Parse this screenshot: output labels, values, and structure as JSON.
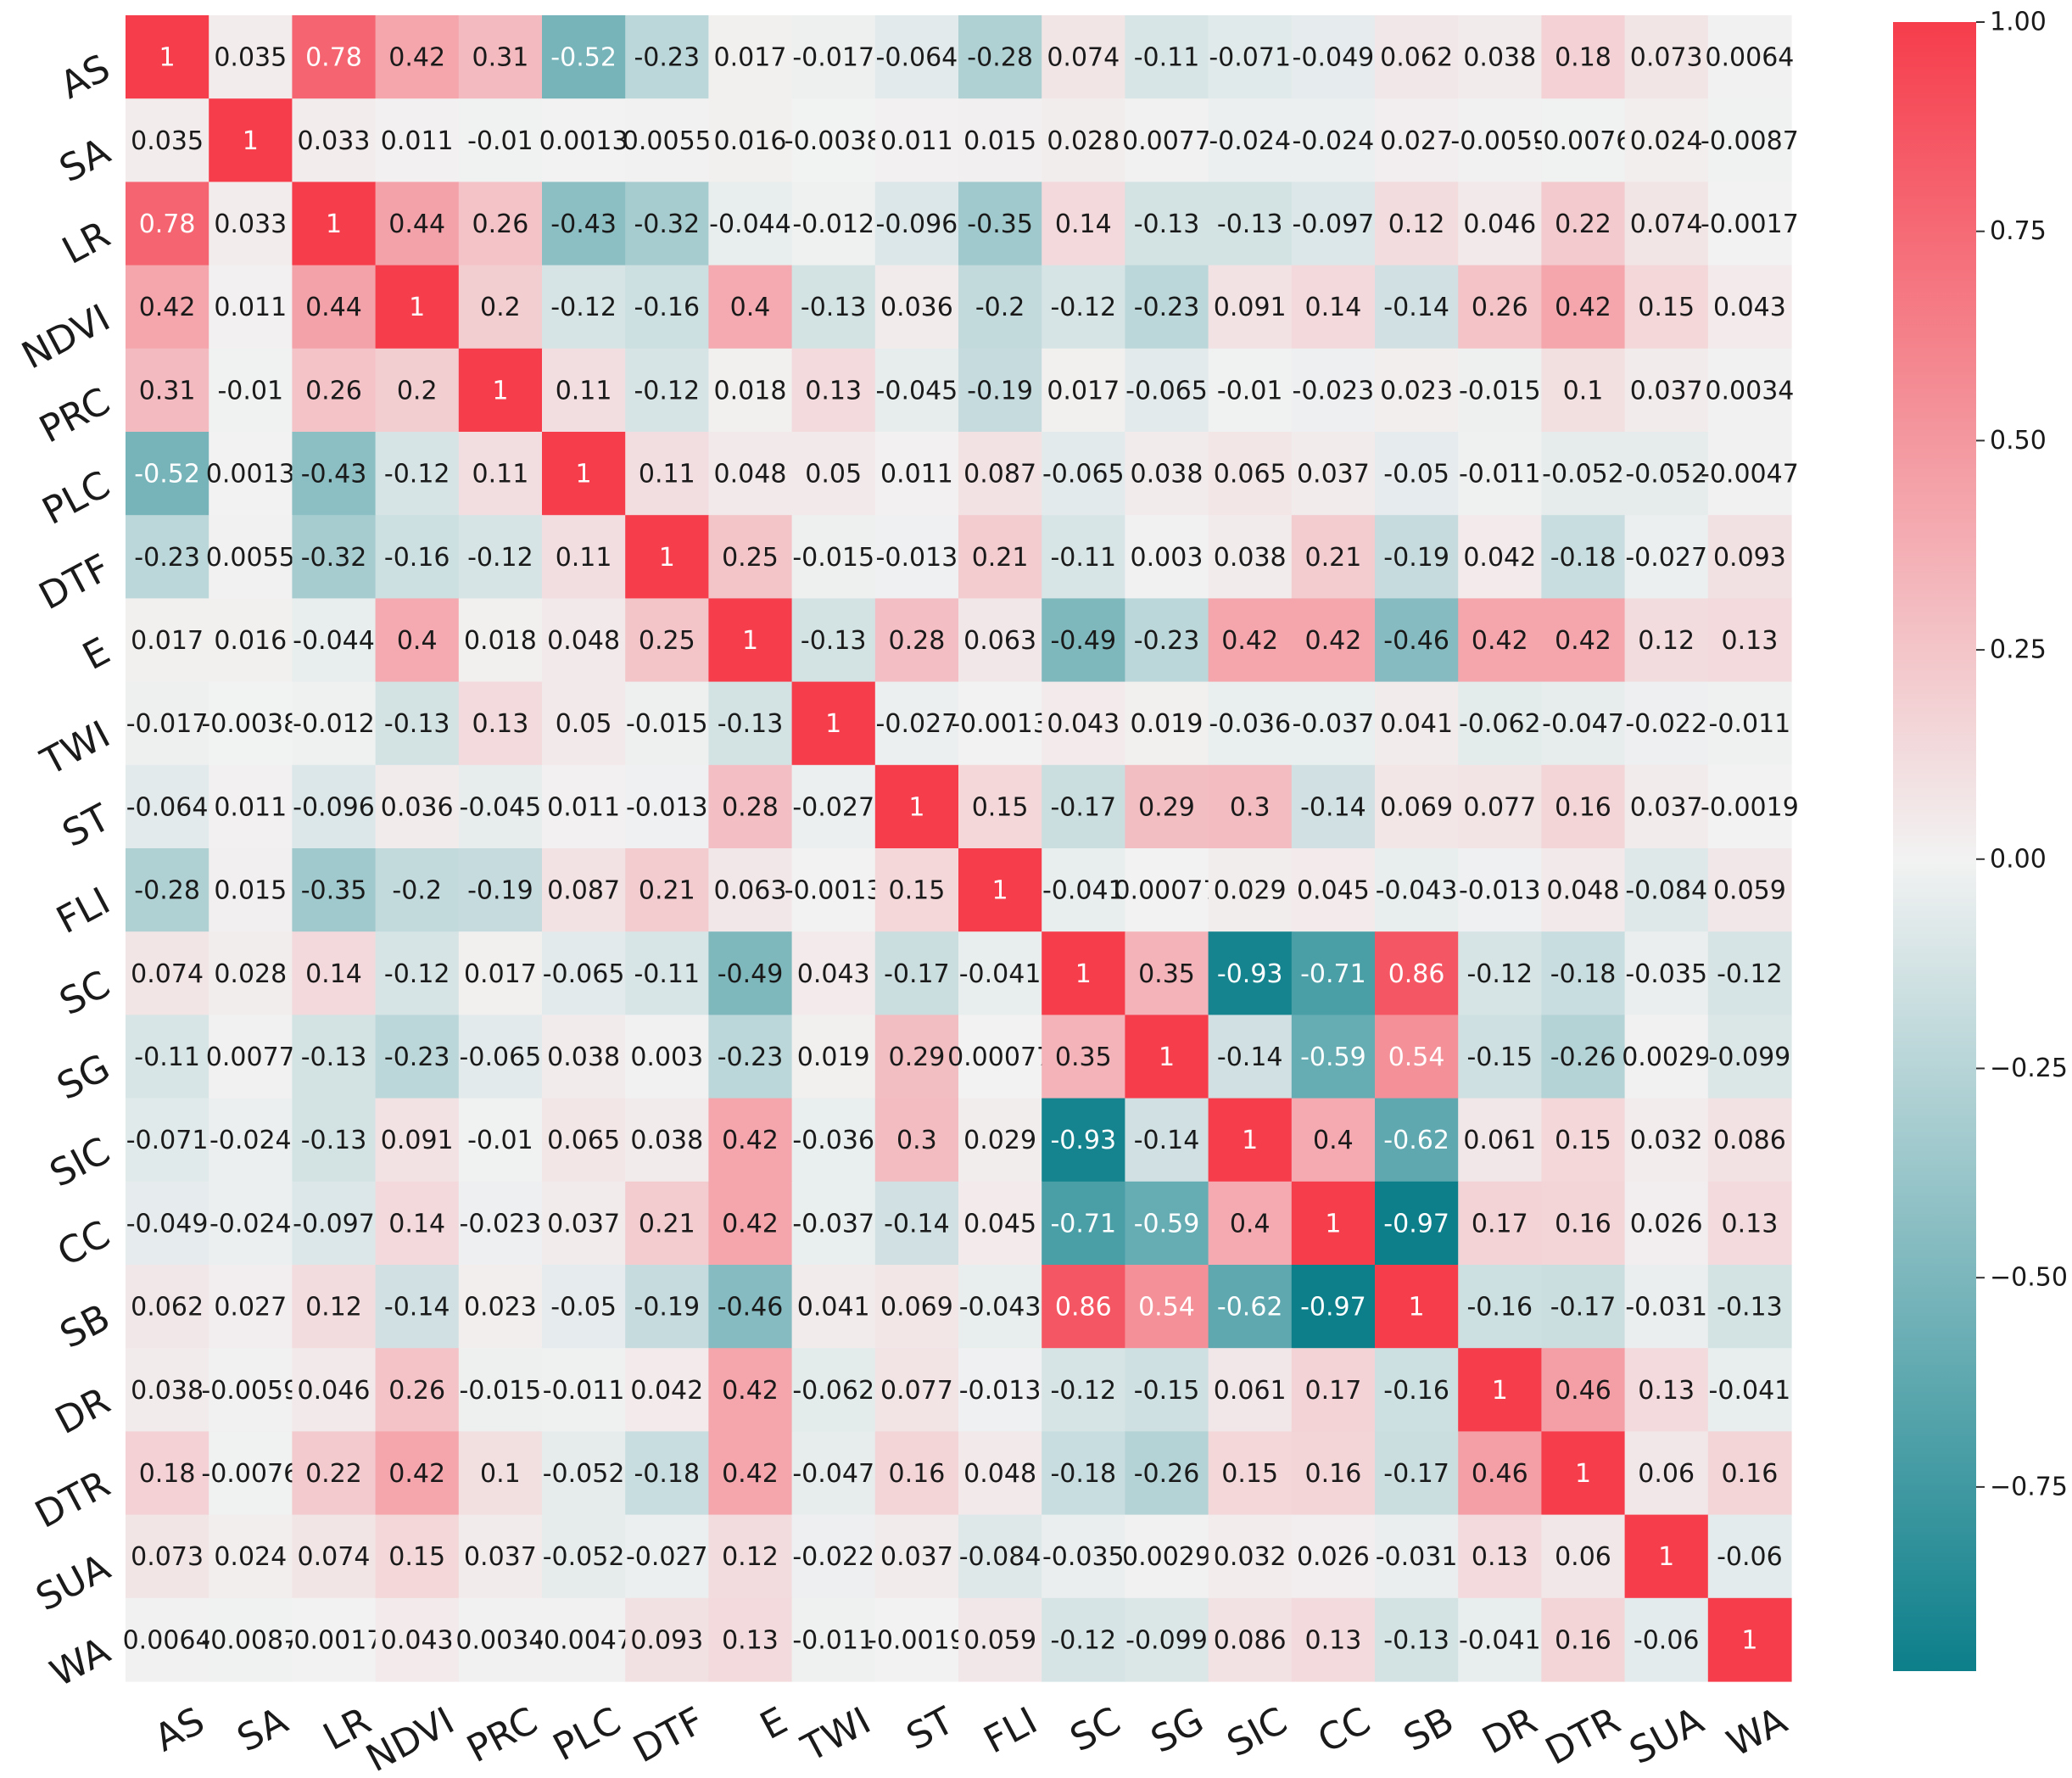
{
  "chart_data": {
    "type": "heatmap",
    "title": "",
    "labels": [
      "AS",
      "SA",
      "LR",
      "NDVI",
      "PRC",
      "PLC",
      "DTF",
      "E",
      "TWI",
      "ST",
      "FLI",
      "SC",
      "SG",
      "SIC",
      "CC",
      "SB",
      "DR",
      "DTR",
      "SUA",
      "WA"
    ],
    "matrix": [
      [
        "1",
        "0.035",
        "0.78",
        "0.42",
        "0.31",
        "-0.52",
        "-0.23",
        "0.017",
        "-0.017",
        "-0.064",
        "-0.28",
        "0.074",
        "-0.11",
        "-0.071",
        "-0.049",
        "0.062",
        "0.038",
        "0.18",
        "0.073",
        "0.0064"
      ],
      [
        "0.035",
        "1",
        "0.033",
        "0.011",
        "-0.01",
        "0.0013",
        "0.0055",
        "0.016",
        "-0.0038",
        "0.011",
        "0.015",
        "0.028",
        "0.0077",
        "-0.024",
        "-0.024",
        "0.027",
        "-0.0059",
        "-0.0076",
        "0.024",
        "-0.0087"
      ],
      [
        "0.78",
        "0.033",
        "1",
        "0.44",
        "0.26",
        "-0.43",
        "-0.32",
        "-0.044",
        "-0.012",
        "-0.096",
        "-0.35",
        "0.14",
        "-0.13",
        "-0.13",
        "-0.097",
        "0.12",
        "0.046",
        "0.22",
        "0.074",
        "-0.0017"
      ],
      [
        "0.42",
        "0.011",
        "0.44",
        "1",
        "0.2",
        "-0.12",
        "-0.16",
        "0.4",
        "-0.13",
        "0.036",
        "-0.2",
        "-0.12",
        "-0.23",
        "0.091",
        "0.14",
        "-0.14",
        "0.26",
        "0.42",
        "0.15",
        "0.043"
      ],
      [
        "0.31",
        "-0.01",
        "0.26",
        "0.2",
        "1",
        "0.11",
        "-0.12",
        "0.018",
        "0.13",
        "-0.045",
        "-0.19",
        "0.017",
        "-0.065",
        "-0.01",
        "-0.023",
        "0.023",
        "-0.015",
        "0.1",
        "0.037",
        "0.0034"
      ],
      [
        "-0.52",
        "0.0013",
        "-0.43",
        "-0.12",
        "0.11",
        "1",
        "0.11",
        "0.048",
        "0.05",
        "0.011",
        "0.087",
        "-0.065",
        "0.038",
        "0.065",
        "0.037",
        "-0.05",
        "-0.011",
        "-0.052",
        "-0.052",
        "-0.0047"
      ],
      [
        "-0.23",
        "0.0055",
        "-0.32",
        "-0.16",
        "-0.12",
        "0.11",
        "1",
        "0.25",
        "-0.015",
        "-0.013",
        "0.21",
        "-0.11",
        "0.003",
        "0.038",
        "0.21",
        "-0.19",
        "0.042",
        "-0.18",
        "-0.027",
        "0.093"
      ],
      [
        "0.017",
        "0.016",
        "-0.044",
        "0.4",
        "0.018",
        "0.048",
        "0.25",
        "1",
        "-0.13",
        "0.28",
        "0.063",
        "-0.49",
        "-0.23",
        "0.42",
        "0.42",
        "-0.46",
        "0.42",
        "0.42",
        "0.12",
        "0.13"
      ],
      [
        "-0.017",
        "-0.0038",
        "-0.012",
        "-0.13",
        "0.13",
        "0.05",
        "-0.015",
        "-0.13",
        "1",
        "-0.027",
        "-0.0013",
        "0.043",
        "0.019",
        "-0.036",
        "-0.037",
        "0.041",
        "-0.062",
        "-0.047",
        "-0.022",
        "-0.011"
      ],
      [
        "-0.064",
        "0.011",
        "-0.096",
        "0.036",
        "-0.045",
        "0.011",
        "-0.013",
        "0.28",
        "-0.027",
        "1",
        "0.15",
        "-0.17",
        "0.29",
        "0.3",
        "-0.14",
        "0.069",
        "0.077",
        "0.16",
        "0.037",
        "-0.0019"
      ],
      [
        "-0.28",
        "0.015",
        "-0.35",
        "-0.2",
        "-0.19",
        "0.087",
        "0.21",
        "0.063",
        "-0.0013",
        "0.15",
        "1",
        "-0.041",
        "0.00077",
        "0.029",
        "0.045",
        "-0.043",
        "-0.013",
        "0.048",
        "-0.084",
        "0.059"
      ],
      [
        "0.074",
        "0.028",
        "0.14",
        "-0.12",
        "0.017",
        "-0.065",
        "-0.11",
        "-0.49",
        "0.043",
        "-0.17",
        "-0.041",
        "1",
        "0.35",
        "-0.93",
        "-0.71",
        "0.86",
        "-0.12",
        "-0.18",
        "-0.035",
        "-0.12"
      ],
      [
        "-0.11",
        "0.0077",
        "-0.13",
        "-0.23",
        "-0.065",
        "0.038",
        "0.003",
        "-0.23",
        "0.019",
        "0.29",
        "0.00077",
        "0.35",
        "1",
        "-0.14",
        "-0.59",
        "0.54",
        "-0.15",
        "-0.26",
        "0.0029",
        "-0.099"
      ],
      [
        "-0.071",
        "-0.024",
        "-0.13",
        "0.091",
        "-0.01",
        "0.065",
        "0.038",
        "0.42",
        "-0.036",
        "0.3",
        "0.029",
        "-0.93",
        "-0.14",
        "1",
        "0.4",
        "-0.62",
        "0.061",
        "0.15",
        "0.032",
        "0.086"
      ],
      [
        "-0.049",
        "-0.024",
        "-0.097",
        "0.14",
        "-0.023",
        "0.037",
        "0.21",
        "0.42",
        "-0.037",
        "-0.14",
        "0.045",
        "-0.71",
        "-0.59",
        "0.4",
        "1",
        "-0.97",
        "0.17",
        "0.16",
        "0.026",
        "0.13"
      ],
      [
        "0.062",
        "0.027",
        "0.12",
        "-0.14",
        "0.023",
        "-0.05",
        "-0.19",
        "-0.46",
        "0.041",
        "0.069",
        "-0.043",
        "0.86",
        "0.54",
        "-0.62",
        "-0.97",
        "1",
        "-0.16",
        "-0.17",
        "-0.031",
        "-0.13"
      ],
      [
        "0.038",
        "-0.0059",
        "0.046",
        "0.26",
        "-0.015",
        "-0.011",
        "0.042",
        "0.42",
        "-0.062",
        "0.077",
        "-0.013",
        "-0.12",
        "-0.15",
        "0.061",
        "0.17",
        "-0.16",
        "1",
        "0.46",
        "0.13",
        "-0.041"
      ],
      [
        "0.18",
        "-0.0076",
        "0.22",
        "0.42",
        "0.1",
        "-0.052",
        "-0.18",
        "0.42",
        "-0.047",
        "0.16",
        "0.048",
        "-0.18",
        "-0.26",
        "0.15",
        "0.16",
        "-0.17",
        "0.46",
        "1",
        "0.06",
        "0.16"
      ],
      [
        "0.073",
        "0.024",
        "0.074",
        "0.15",
        "0.037",
        "-0.052",
        "-0.027",
        "0.12",
        "-0.022",
        "0.037",
        "-0.084",
        "-0.035",
        "0.0029",
        "0.032",
        "0.026",
        "-0.031",
        "0.13",
        "0.06",
        "1",
        "-0.06"
      ],
      [
        "0.0064",
        "-0.0087",
        "-0.0017",
        "0.043",
        "0.0034",
        "-0.0047",
        "0.093",
        "0.13",
        "-0.011",
        "-0.0019",
        "0.059",
        "-0.12",
        "-0.099",
        "0.086",
        "0.13",
        "-0.13",
        "-0.041",
        "0.16",
        "-0.06",
        "1"
      ]
    ],
    "colorbar": {
      "range": [
        -0.97,
        1.0
      ],
      "ticks": [
        1.0,
        0.75,
        0.5,
        0.25,
        0.0,
        -0.25,
        -0.5,
        -0.75
      ],
      "tick_labels": [
        "1.00",
        "0.75",
        "0.50",
        "0.25",
        "0.00",
        "−0.25",
        "−0.50",
        "−0.75"
      ]
    },
    "colors": {
      "negative": "#0c7f8a",
      "center": "#f2f2f2",
      "positive": "#f63d4c",
      "text_dark": "#1a1a1a",
      "text_light": "#ffffff"
    }
  }
}
